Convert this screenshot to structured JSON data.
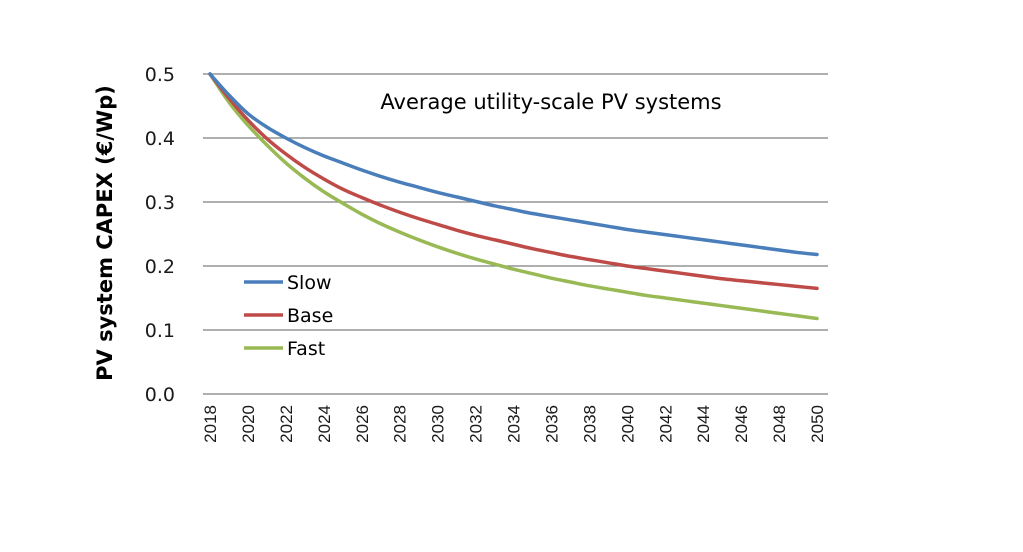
{
  "chart_data": {
    "type": "line",
    "title": "Average utility-scale PV systems",
    "xlabel": "",
    "ylabel": "PV system CAPEX (€/Wp)",
    "ylim": [
      0.0,
      0.5
    ],
    "yticks": [
      "0.0",
      "0.1",
      "0.2",
      "0.3",
      "0.4",
      "0.5"
    ],
    "xlim": [
      2018,
      2050
    ],
    "xticks": [
      "2018",
      "2020",
      "2022",
      "2024",
      "2026",
      "2028",
      "2030",
      "2032",
      "2034",
      "2036",
      "2038",
      "2040",
      "2042",
      "2044",
      "2046",
      "2048",
      "2050"
    ],
    "grid": "horizontal",
    "legend_position": "lower-left",
    "x": [
      2018,
      2019,
      2020,
      2021,
      2022,
      2023,
      2024,
      2025,
      2026,
      2027,
      2028,
      2029,
      2030,
      2031,
      2032,
      2033,
      2034,
      2035,
      2036,
      2037,
      2038,
      2039,
      2040,
      2041,
      2042,
      2043,
      2044,
      2045,
      2046,
      2047,
      2048,
      2049,
      2050
    ],
    "series": [
      {
        "name": "Slow",
        "color": "#4a7ebb",
        "values": [
          0.5,
          0.467,
          0.438,
          0.417,
          0.4,
          0.385,
          0.372,
          0.361,
          0.35,
          0.34,
          0.331,
          0.323,
          0.315,
          0.308,
          0.301,
          0.294,
          0.288,
          0.282,
          0.277,
          0.272,
          0.267,
          0.262,
          0.257,
          0.253,
          0.249,
          0.245,
          0.241,
          0.237,
          0.233,
          0.229,
          0.225,
          0.221,
          0.218
        ]
      },
      {
        "name": "Base",
        "color": "#be4b48",
        "values": [
          0.5,
          0.462,
          0.428,
          0.399,
          0.375,
          0.354,
          0.336,
          0.32,
          0.307,
          0.295,
          0.284,
          0.274,
          0.265,
          0.256,
          0.248,
          0.241,
          0.234,
          0.227,
          0.221,
          0.215,
          0.21,
          0.205,
          0.2,
          0.196,
          0.192,
          0.188,
          0.184,
          0.18,
          0.177,
          0.174,
          0.171,
          0.168,
          0.165
        ]
      },
      {
        "name": "Fast",
        "color": "#98b954",
        "values": [
          0.5,
          0.456,
          0.42,
          0.389,
          0.361,
          0.337,
          0.316,
          0.298,
          0.281,
          0.266,
          0.253,
          0.241,
          0.23,
          0.22,
          0.211,
          0.203,
          0.195,
          0.188,
          0.181,
          0.175,
          0.169,
          0.164,
          0.159,
          0.154,
          0.15,
          0.146,
          0.142,
          0.138,
          0.134,
          0.13,
          0.126,
          0.122,
          0.118
        ]
      }
    ]
  }
}
